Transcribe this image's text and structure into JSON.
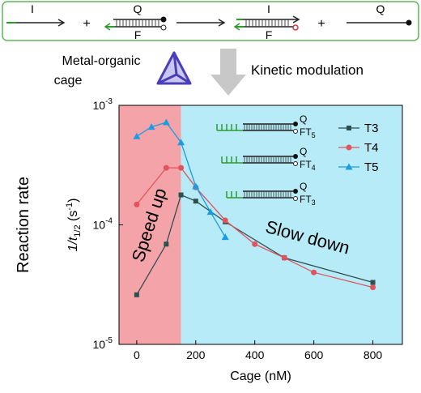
{
  "top": {
    "step1_strand": "I",
    "plus1": "+",
    "duplex1_top": "Q",
    "duplex1_bottom": "F",
    "duplex2_top": "I",
    "duplex2_bottom": "F",
    "plus2": "+",
    "product_strand": "Q",
    "cage_label": [
      "Metal-organic",
      "cage"
    ],
    "modulation_label": "Kinetic modulation"
  },
  "chart_data": {
    "type": "line",
    "ylabel": "Reaction rate",
    "ylabel_parts": [
      "1/t",
      "1/2",
      " (s",
      "-1",
      ")"
    ],
    "xlabel": "Cage (nM)",
    "xlim": [
      -60,
      900
    ],
    "xticks": [
      0,
      200,
      400,
      600,
      800
    ],
    "ylim": [
      1e-05,
      0.001
    ],
    "log_y": true,
    "yticks": [
      {
        "value": 1e-05,
        "label": "10-5"
      },
      {
        "value": 0.0001,
        "label": "10-4"
      },
      {
        "value": 0.001,
        "label": "10-3"
      }
    ],
    "regions": [
      {
        "label": "Speed up",
        "color": "#f4a3a8",
        "start": -60,
        "end": 150
      },
      {
        "label": "Slow down",
        "color": "#b6ebf7",
        "start": 150,
        "end": 900
      }
    ],
    "legend": "upper right",
    "insets": [
      {
        "q": "Q",
        "f": "FT5"
      },
      {
        "q": "Q",
        "f": "FT4"
      },
      {
        "q": "Q",
        "f": "FT3"
      }
    ],
    "series": [
      {
        "name": "T3",
        "color": "#2f4f4f",
        "marker": "square",
        "x": [
          0,
          100,
          150,
          200,
          300,
          500,
          800
        ],
        "values": [
          2.6e-05,
          6.9e-05,
          0.000178,
          0.000158,
          0.000106,
          5.3e-05,
          3.3e-05
        ]
      },
      {
        "name": "T4",
        "color": "#e2535e",
        "marker": "circle",
        "x": [
          0,
          100,
          150,
          200,
          300,
          400,
          500,
          600,
          800
        ],
        "values": [
          0.000148,
          0.0003,
          0.0003,
          0.000206,
          0.000109,
          6.9e-05,
          5.3e-05,
          4e-05,
          3e-05
        ]
      },
      {
        "name": "T5",
        "color": "#1b9ce2",
        "marker": "triangle",
        "x": [
          0,
          50,
          100,
          150,
          200,
          250,
          300
        ],
        "values": [
          0.00055,
          0.00066,
          0.00072,
          0.00049,
          0.00021,
          0.000128,
          7.9e-05
        ]
      }
    ]
  }
}
